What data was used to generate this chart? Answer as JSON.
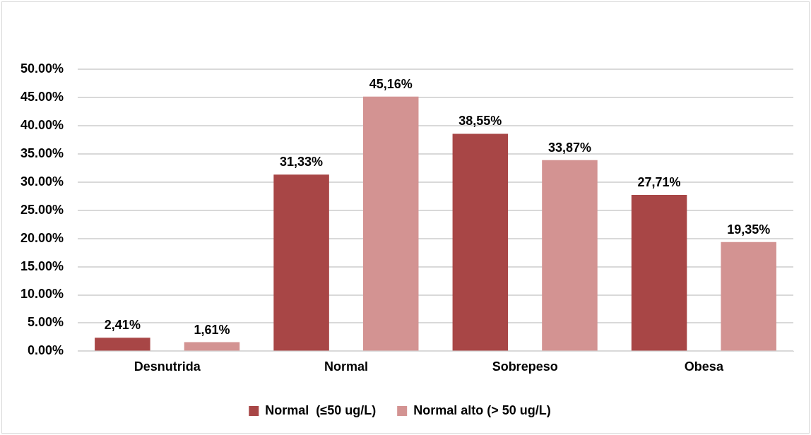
{
  "chart_data": {
    "type": "bar",
    "categories": [
      "Desnutrida",
      "Normal",
      "Sobrepeso",
      "Obesa"
    ],
    "series": [
      {
        "name": "Normal  (≤50 ug/L)",
        "color": "#a84646",
        "values": [
          2.41,
          31.33,
          38.55,
          27.71
        ],
        "value_labels": [
          "2,41%",
          "31,33%",
          "38,55%",
          "27,71%"
        ]
      },
      {
        "name": "Normal alto (> 50 ug/L)",
        "color": "#d39392",
        "values": [
          1.61,
          45.16,
          33.87,
          19.35
        ],
        "value_labels": [
          "1,61%",
          "45,16%",
          "33,87%",
          "19,35%"
        ]
      }
    ],
    "ylim": [
      0,
      50
    ],
    "yticks": [
      {
        "value": 0,
        "label": "0.00%"
      },
      {
        "value": 5,
        "label": "5.00%"
      },
      {
        "value": 10,
        "label": "10.00%"
      },
      {
        "value": 15,
        "label": "15.00%"
      },
      {
        "value": 20,
        "label": "20.00%"
      },
      {
        "value": 25,
        "label": "25.00%"
      },
      {
        "value": 30,
        "label": "30.00%"
      },
      {
        "value": 35,
        "label": "35.00%"
      },
      {
        "value": 40,
        "label": "40.00%"
      },
      {
        "value": 45,
        "label": "45.00%"
      },
      {
        "value": 50,
        "label": "50.00%"
      }
    ],
    "grid": "y",
    "legend": "bottom"
  }
}
